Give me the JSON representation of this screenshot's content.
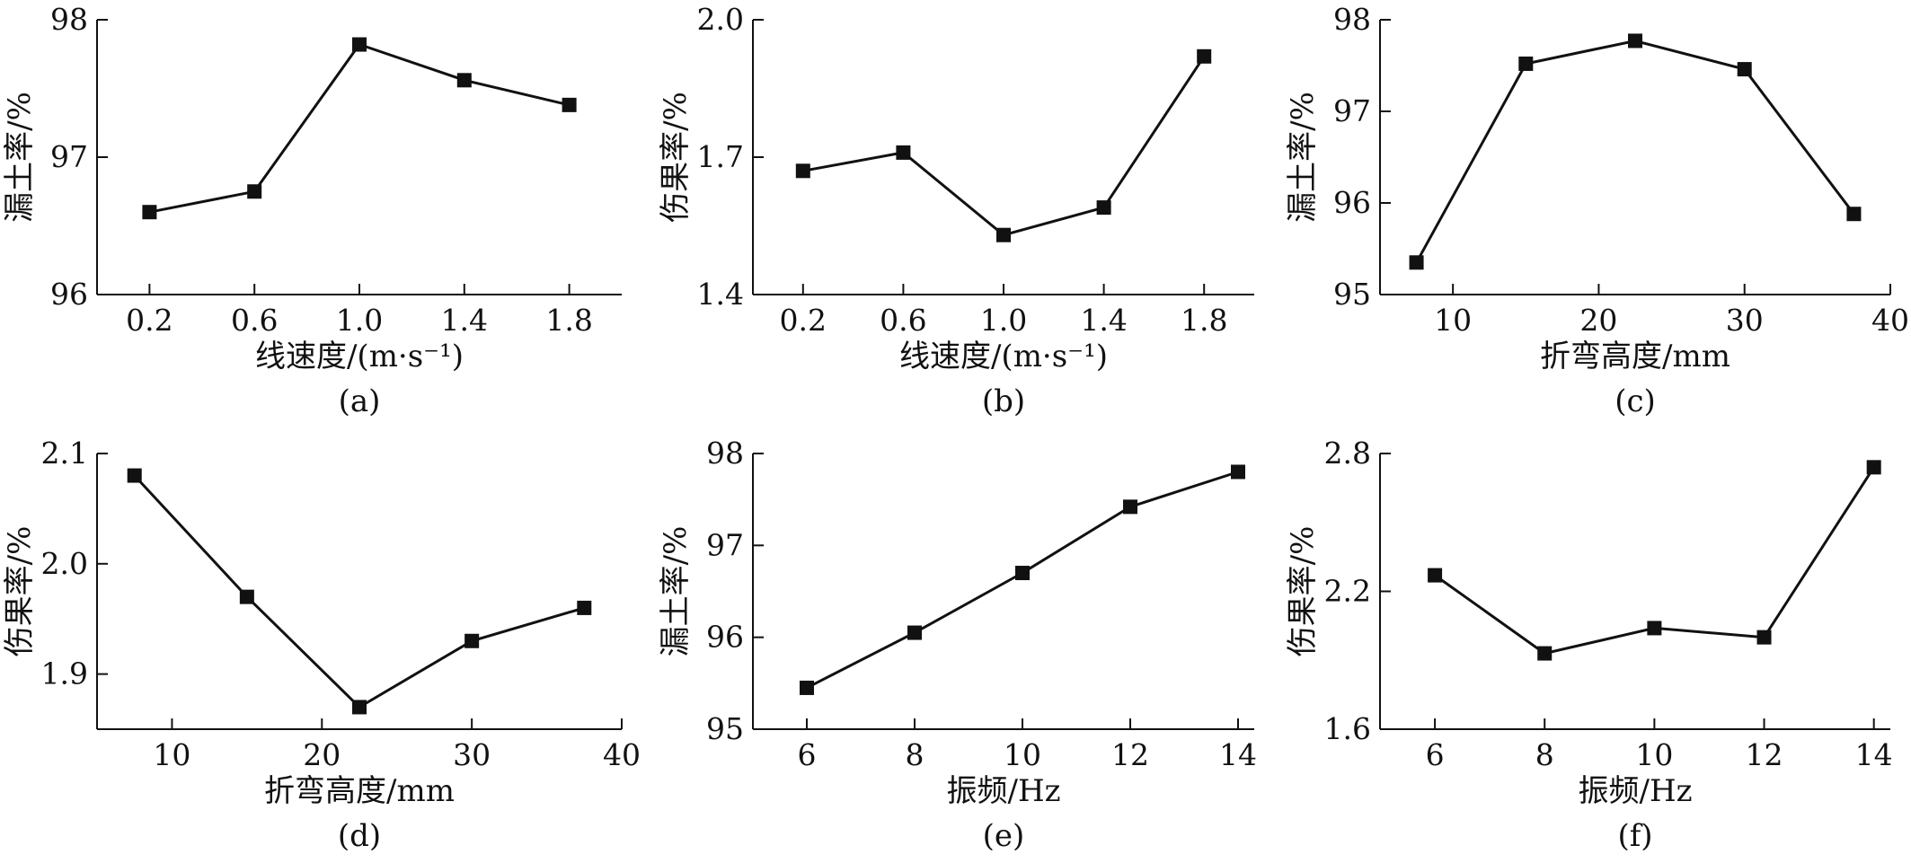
{
  "chart_data": [
    {
      "type": "line",
      "panel_label": "(a)",
      "xlabel": "线速度/(m·s⁻¹)",
      "ylabel": "漏土率/%",
      "x": [
        0.2,
        0.6,
        1.0,
        1.4,
        1.8
      ],
      "y": [
        96.6,
        96.75,
        97.82,
        97.56,
        97.38
      ],
      "xticks": [
        "0.2",
        "0.6",
        "1.0",
        "1.4",
        "1.8"
      ],
      "xtick_values": [
        0.2,
        0.6,
        1.0,
        1.4,
        1.8
      ],
      "yticks": [
        "96",
        "97",
        "98"
      ],
      "ytick_values": [
        96,
        97,
        98
      ],
      "xlim": [
        0,
        2.0
      ],
      "ylim": [
        96,
        98
      ],
      "marker": "square",
      "grid": false
    },
    {
      "type": "line",
      "panel_label": "(b)",
      "xlabel": "线速度/(m·s⁻¹)",
      "ylabel": "伤果率/%",
      "x": [
        0.2,
        0.6,
        1.0,
        1.4,
        1.8
      ],
      "y": [
        1.67,
        1.71,
        1.53,
        1.59,
        1.92
      ],
      "xticks": [
        "0.2",
        "0.6",
        "1.0",
        "1.4",
        "1.8"
      ],
      "xtick_values": [
        0.2,
        0.6,
        1.0,
        1.4,
        1.8
      ],
      "yticks": [
        "1.4",
        "1.7",
        "2.0"
      ],
      "ytick_values": [
        1.4,
        1.7,
        2.0
      ],
      "xlim": [
        0,
        2.0
      ],
      "ylim": [
        1.4,
        2.0
      ],
      "marker": "square",
      "grid": false
    },
    {
      "type": "line",
      "panel_label": "(c)",
      "xlabel": "折弯高度/mm",
      "ylabel": "漏土率/%",
      "x": [
        7.5,
        15,
        22.5,
        30,
        37.5
      ],
      "y": [
        95.35,
        97.52,
        97.77,
        97.46,
        95.88
      ],
      "xticks": [
        "10",
        "20",
        "30",
        "40"
      ],
      "xtick_values": [
        10,
        20,
        30,
        40
      ],
      "yticks": [
        "95",
        "96",
        "97",
        "98"
      ],
      "ytick_values": [
        95,
        96,
        97,
        98
      ],
      "xlim": [
        5,
        40
      ],
      "ylim": [
        95,
        98
      ],
      "marker": "square",
      "grid": false
    },
    {
      "type": "line",
      "panel_label": "(d)",
      "xlabel": "折弯高度/mm",
      "ylabel": "伤果率/%",
      "x": [
        7.5,
        15,
        22.5,
        30,
        37.5
      ],
      "y": [
        2.08,
        1.97,
        1.87,
        1.93,
        1.96
      ],
      "xticks": [
        "10",
        "20",
        "30",
        "40"
      ],
      "xtick_values": [
        10,
        20,
        30,
        40
      ],
      "yticks": [
        "1.9",
        "2.0",
        "2.1"
      ],
      "ytick_values": [
        1.9,
        2.0,
        2.1
      ],
      "xlim": [
        5,
        40
      ],
      "ylim": [
        1.85,
        2.1
      ],
      "marker": "square",
      "grid": false
    },
    {
      "type": "line",
      "panel_label": "(e)",
      "xlabel": "振频/Hz",
      "ylabel": "漏土率/%",
      "x": [
        6,
        8,
        10,
        12,
        14
      ],
      "y": [
        95.45,
        96.05,
        96.7,
        97.42,
        97.8
      ],
      "xticks": [
        "6",
        "8",
        "10",
        "12",
        "14"
      ],
      "xtick_values": [
        6,
        8,
        10,
        12,
        14
      ],
      "yticks": [
        "95",
        "96",
        "97",
        "98"
      ],
      "ytick_values": [
        95,
        96,
        97,
        98
      ],
      "xlim": [
        5,
        14.3
      ],
      "ylim": [
        95,
        98
      ],
      "marker": "square",
      "grid": false
    },
    {
      "type": "line",
      "panel_label": "(f)",
      "xlabel": "振频/Hz",
      "ylabel": "伤果率/%",
      "x": [
        6,
        8,
        10,
        12,
        14
      ],
      "y": [
        2.27,
        1.93,
        2.04,
        2.0,
        2.74
      ],
      "xticks": [
        "6",
        "8",
        "10",
        "12",
        "14"
      ],
      "xtick_values": [
        6,
        8,
        10,
        12,
        14
      ],
      "yticks": [
        "1.6",
        "2.2",
        "2.8"
      ],
      "ytick_values": [
        1.6,
        2.2,
        2.8
      ],
      "xlim": [
        5,
        14.3
      ],
      "ylim": [
        1.6,
        2.8
      ],
      "marker": "square",
      "grid": false
    }
  ]
}
